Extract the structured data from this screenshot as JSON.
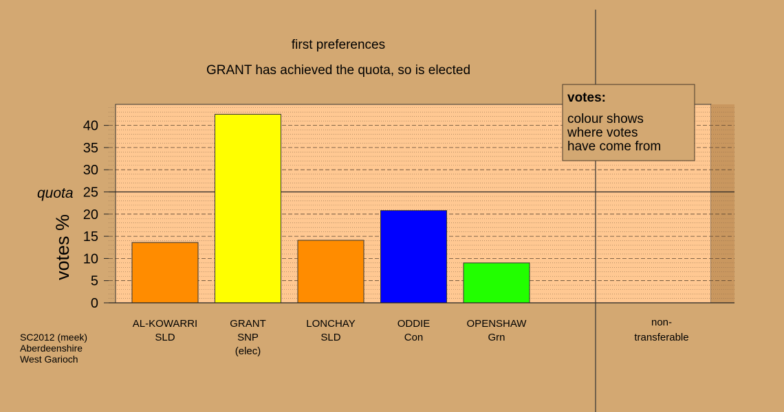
{
  "chart_data": {
    "type": "bar",
    "title": "first preferences",
    "subtitle": "GRANT has achieved the quota, so is elected",
    "ylabel": "votes %",
    "ylim": [
      0,
      45
    ],
    "yticks": [
      0,
      5,
      10,
      15,
      20,
      25,
      30,
      35,
      40
    ],
    "quota": 25,
    "quota_label": "quota",
    "grid": true,
    "categories": [
      {
        "name": "AL-KOWARRI",
        "party": "SLD",
        "note": ""
      },
      {
        "name": "GRANT",
        "party": "SNP",
        "note": "(elec)"
      },
      {
        "name": "LONCHAY",
        "party": "SLD",
        "note": ""
      },
      {
        "name": "ODDIE",
        "party": "Con",
        "note": ""
      },
      {
        "name": "OPENSHAW",
        "party": "Grn",
        "note": ""
      }
    ],
    "values": [
      13.6,
      42.5,
      14.1,
      20.8,
      9.0
    ],
    "colors": [
      "#ff8c00",
      "#ffff00",
      "#ff8c00",
      "#0000ff",
      "#22ff00"
    ],
    "nontransferable": {
      "line1": "non-",
      "line2": "transferable",
      "value": 0
    },
    "legend": {
      "title": "votes:",
      "lines": [
        "colour shows",
        "where votes",
        "have come from"
      ],
      "placement": "top-right"
    }
  },
  "footer": {
    "lines": [
      "SC2012 (meek)",
      "Aberdeenshire",
      "West Garioch"
    ]
  }
}
